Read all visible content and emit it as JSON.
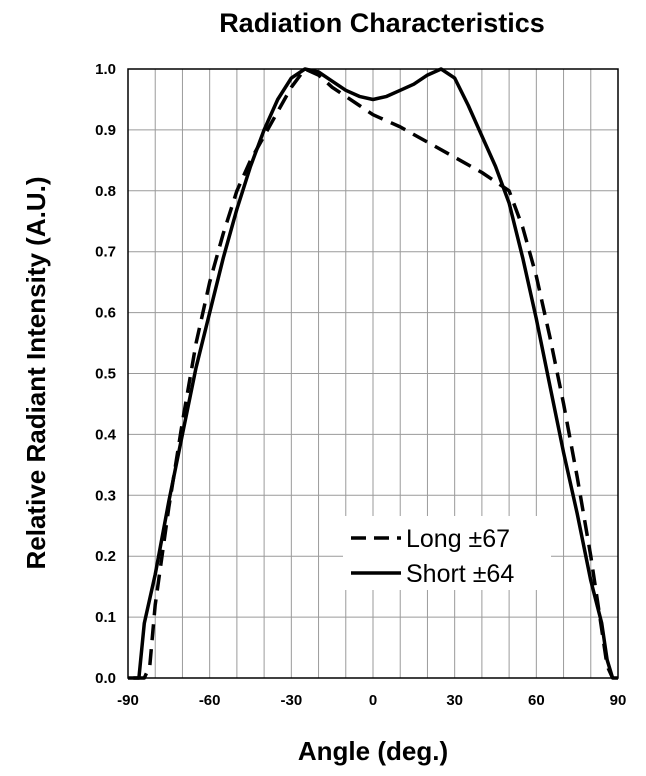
{
  "chart_data": {
    "type": "line",
    "title": "Radiation Characteristics",
    "xlabel": "Angle (deg.)",
    "ylabel": "Relative Radiant Intensity (A.U.)",
    "xlim": [
      -90,
      90
    ],
    "ylim": [
      0,
      1.0
    ],
    "x_ticks": [
      "-90",
      "-60",
      "-30",
      "0",
      "30",
      "60",
      "90"
    ],
    "y_ticks": [
      "0.0",
      "0.1",
      "0.2",
      "0.3",
      "0.4",
      "0.5",
      "0.6",
      "0.7",
      "0.8",
      "0.9",
      "1.0"
    ],
    "grid": true,
    "legend_position": "bottom-right",
    "series": [
      {
        "name": "Long ±67",
        "style": "dashed",
        "color": "#000000",
        "points": [
          [
            -88,
            0.0
          ],
          [
            -84,
            0.0
          ],
          [
            -82,
            0.02
          ],
          [
            -80,
            0.12
          ],
          [
            -75,
            0.28
          ],
          [
            -70,
            0.42
          ],
          [
            -65,
            0.55
          ],
          [
            -60,
            0.65
          ],
          [
            -55,
            0.73
          ],
          [
            -50,
            0.8
          ],
          [
            -45,
            0.85
          ],
          [
            -40,
            0.89
          ],
          [
            -35,
            0.93
          ],
          [
            -30,
            0.97
          ],
          [
            -25,
            1.0
          ],
          [
            -20,
            0.99
          ],
          [
            -15,
            0.97
          ],
          [
            -10,
            0.955
          ],
          [
            -5,
            0.94
          ],
          [
            0,
            0.925
          ],
          [
            10,
            0.905
          ],
          [
            20,
            0.88
          ],
          [
            30,
            0.855
          ],
          [
            40,
            0.83
          ],
          [
            50,
            0.8
          ],
          [
            55,
            0.74
          ],
          [
            60,
            0.66
          ],
          [
            65,
            0.56
          ],
          [
            70,
            0.45
          ],
          [
            75,
            0.33
          ],
          [
            80,
            0.2
          ],
          [
            84,
            0.08
          ],
          [
            86,
            0.02
          ],
          [
            88,
            0.0
          ]
        ]
      },
      {
        "name": "Short ±64",
        "style": "solid",
        "color": "#000000",
        "points": [
          [
            -90,
            0.0
          ],
          [
            -86,
            0.0
          ],
          [
            -84,
            0.09
          ],
          [
            -80,
            0.17
          ],
          [
            -75,
            0.29
          ],
          [
            -70,
            0.4
          ],
          [
            -65,
            0.51
          ],
          [
            -60,
            0.6
          ],
          [
            -55,
            0.69
          ],
          [
            -50,
            0.77
          ],
          [
            -45,
            0.84
          ],
          [
            -40,
            0.9
          ],
          [
            -35,
            0.95
          ],
          [
            -30,
            0.985
          ],
          [
            -25,
            1.0
          ],
          [
            -20,
            0.995
          ],
          [
            -15,
            0.98
          ],
          [
            -10,
            0.965
          ],
          [
            -5,
            0.955
          ],
          [
            0,
            0.95
          ],
          [
            5,
            0.955
          ],
          [
            10,
            0.965
          ],
          [
            15,
            0.975
          ],
          [
            20,
            0.99
          ],
          [
            25,
            1.0
          ],
          [
            30,
            0.985
          ],
          [
            35,
            0.94
          ],
          [
            40,
            0.89
          ],
          [
            45,
            0.84
          ],
          [
            50,
            0.78
          ],
          [
            55,
            0.69
          ],
          [
            60,
            0.59
          ],
          [
            65,
            0.48
          ],
          [
            70,
            0.37
          ],
          [
            75,
            0.27
          ],
          [
            80,
            0.16
          ],
          [
            84,
            0.09
          ],
          [
            86,
            0.03
          ],
          [
            88,
            0.0
          ],
          [
            90,
            0.0
          ]
        ]
      }
    ]
  }
}
